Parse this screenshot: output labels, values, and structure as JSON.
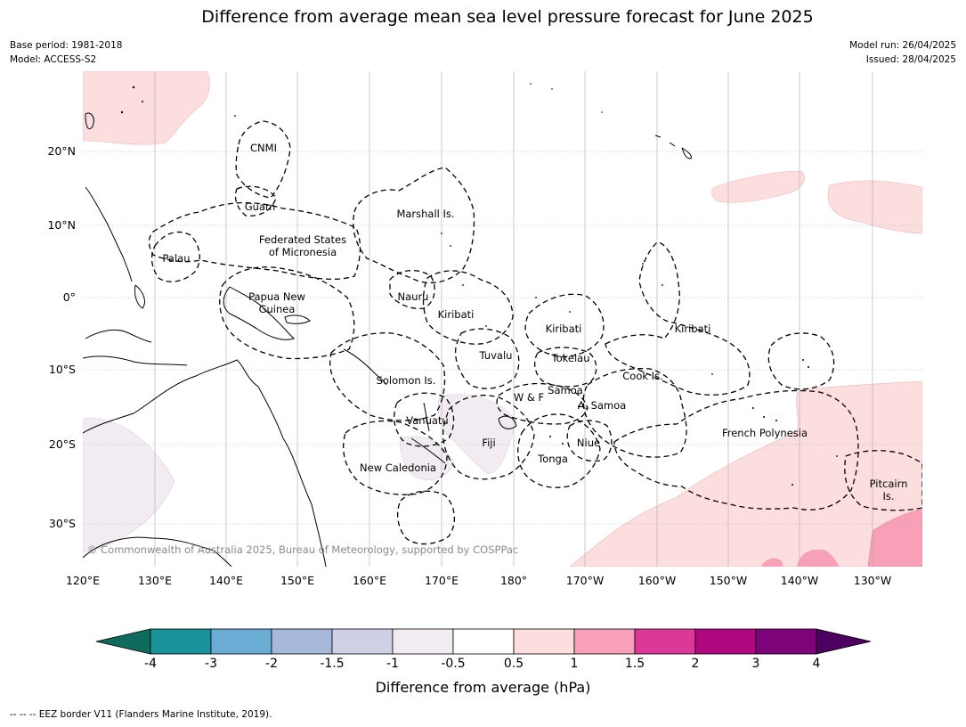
{
  "title": "Difference from average mean sea level pressure forecast for June 2025",
  "meta_left": {
    "base_period": "Base period: 1981-2018",
    "model": "Model: ACCESS-S2"
  },
  "meta_right": {
    "model_run": "Model run: 26/04/2025",
    "issued": "Issued: 28/04/2025"
  },
  "lon_ticks": [
    "120°E",
    "130°E",
    "140°E",
    "150°E",
    "160°E",
    "170°E",
    "180°",
    "170°W",
    "160°W",
    "150°W",
    "140°W",
    "130°W"
  ],
  "lat_ticks": [
    "20°N",
    "10°N",
    "0°",
    "10°S",
    "20°S",
    "30°S"
  ],
  "places": {
    "cnmi": "CNMI",
    "guam": "Guam",
    "marshall": "Marshall Is.",
    "fsm": "Federated States\nof Micronesia",
    "palau": "Palau",
    "png": "Papua New\nGuinea",
    "nauru": "Nauru",
    "kiribati_w": "Kiribati",
    "kiribati_c": "Kiribati",
    "kiribati_e": "Kiribati",
    "tuvalu": "Tuvalu",
    "tokelau": "Tokelau",
    "solomon": "Solomon Is.",
    "cook": "Cook Is.",
    "samoa": "Samoa",
    "wf": "W & F",
    "asamoa": "A. Samoa",
    "vanuatu": "Vanuatu",
    "fiji": "Fiji",
    "niue": "Niue",
    "french_poly": "French Polynesia",
    "tonga": "Tonga",
    "new_caledonia": "New Caledonia",
    "pitcairn": "Pitcairn\nIs."
  },
  "copyright": "© Commonwealth of Australia 2025, Bureau of Meteorology, supported by COSPPac",
  "colorbar": {
    "ticks": [
      "-4",
      "-3",
      "-2",
      "-1.5",
      "-1",
      "-0.5",
      "0.5",
      "1",
      "1.5",
      "2",
      "3",
      "4"
    ],
    "colors": [
      "#0e6b5e",
      "#1b9199",
      "#6aacd4",
      "#a6b9da",
      "#cfd0e6",
      "#f2ecf2",
      "#ffffff",
      "#fddede",
      "#f7a0b8",
      "#dc389a",
      "#b0067e",
      "#7d037a",
      "#4d005f"
    ],
    "label": "Difference from average (hPa)"
  },
  "footer_note": "--  --  -- EEZ border V11 (Flanders Marine Institute, 2019)."
}
